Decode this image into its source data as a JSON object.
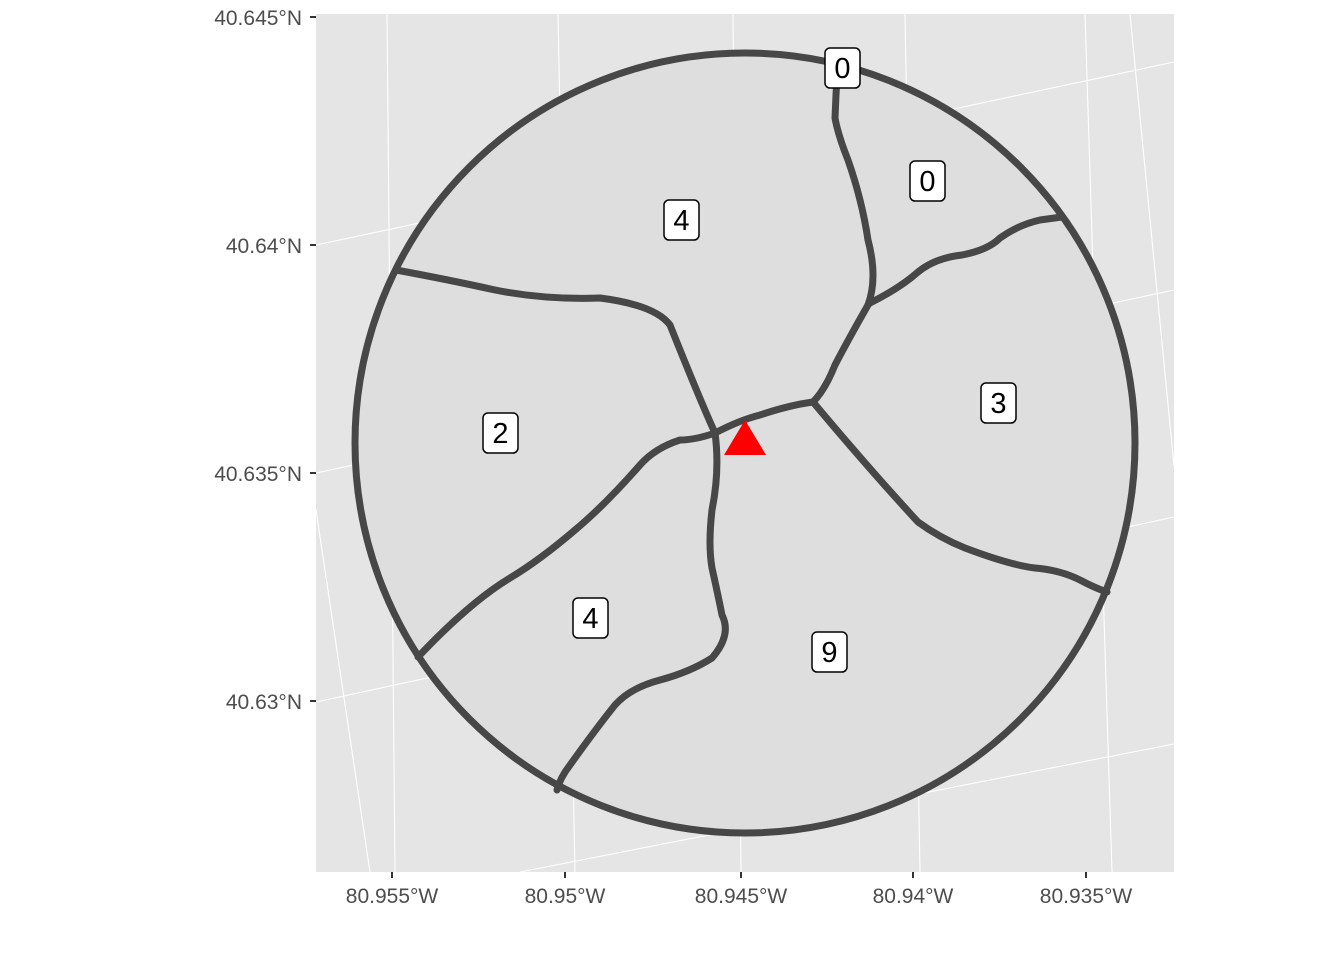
{
  "colors": {
    "panel_background": "#e5e5e5",
    "grid_line": "#ffffff",
    "zone_fill": "#dedede",
    "boundary_stroke": "#474747",
    "marker": "#ff0000",
    "label_fill": "#ffffff"
  },
  "axes": {
    "x_ticks": [
      "80.955°W",
      "80.95°W",
      "80.945°W",
      "80.94°W",
      "80.935°W"
    ],
    "y_ticks": [
      "40.645°N",
      "40.64°N",
      "40.635°N",
      "40.63°N"
    ]
  },
  "map": {
    "center_marker": {
      "shape": "triangle-icon",
      "color": "#ff0000"
    },
    "zones": [
      {
        "id": "north-west",
        "count": "4"
      },
      {
        "id": "north-sliver",
        "count": "0"
      },
      {
        "id": "north-east",
        "count": "0"
      },
      {
        "id": "east",
        "count": "3"
      },
      {
        "id": "south",
        "count": "9"
      },
      {
        "id": "south-west",
        "count": "4"
      },
      {
        "id": "west",
        "count": "2"
      }
    ]
  }
}
